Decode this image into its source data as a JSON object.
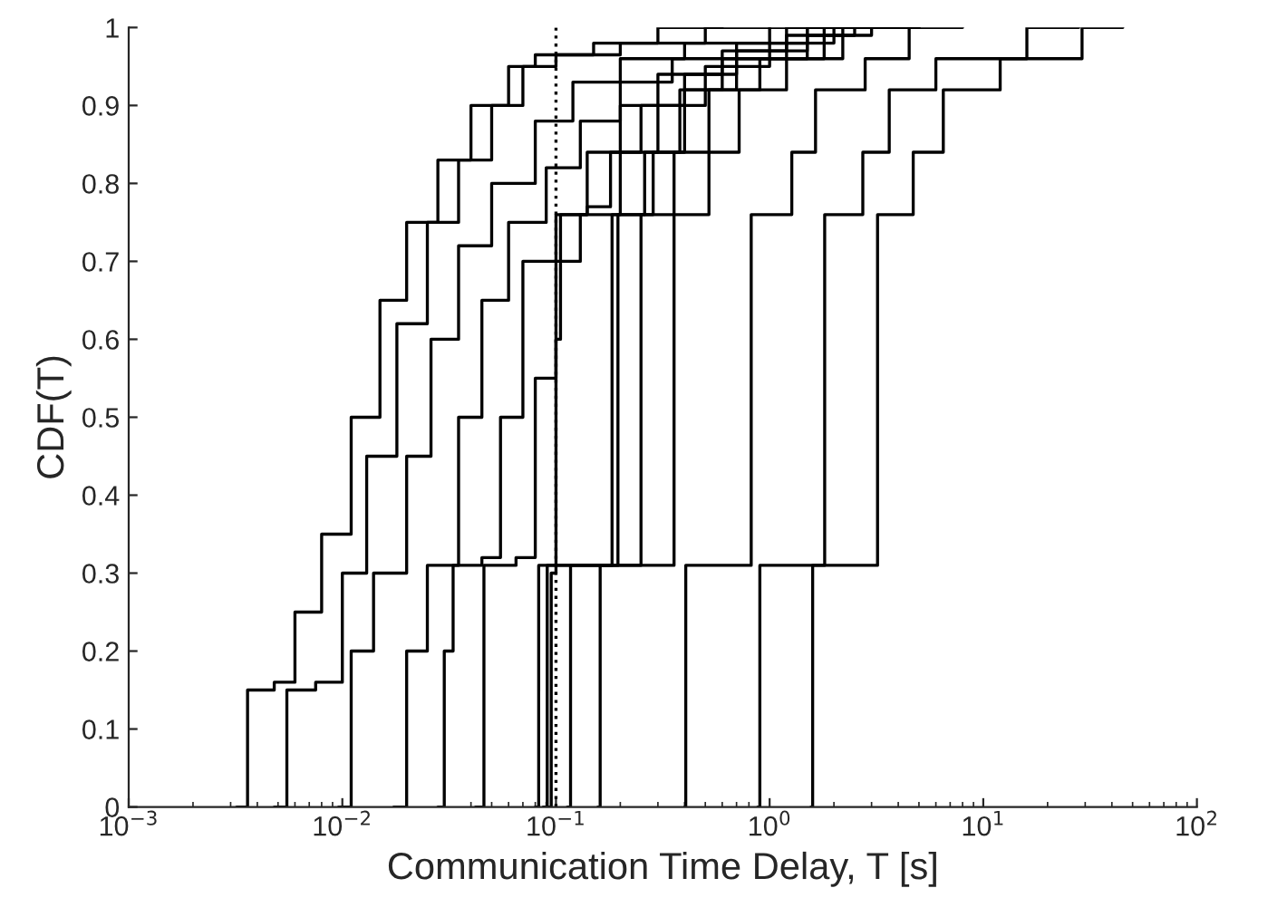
{
  "chart_data": {
    "type": "step",
    "xlabel": "Communication Time Delay, T [s]",
    "ylabel": "CDF(T)",
    "log": "x",
    "grid": false,
    "legend": false,
    "marker": "none",
    "line_style": "solid",
    "xlim": [
      0.001,
      100
    ],
    "ylim": [
      0,
      1
    ],
    "xticks": [
      {
        "value": 0.001,
        "label": "10$^{−3}$"
      },
      {
        "value": 0.01,
        "label": "10$^{−2}$"
      },
      {
        "value": 0.1,
        "label": "10$^{−1}$"
      },
      {
        "value": 1,
        "label": "10$^{0}$"
      },
      {
        "value": 10,
        "label": "10$^{1}$"
      },
      {
        "value": 100,
        "label": "10$^{2}$"
      }
    ],
    "yticks": [
      0,
      0.1,
      0.2,
      0.3,
      0.4,
      0.5,
      0.6,
      0.7,
      0.8,
      0.9,
      1
    ],
    "ref_lines": [
      {
        "axis": "x",
        "value": 0.1,
        "color": "#000000",
        "line_style": "dotted"
      }
    ],
    "series": [
      {
        "color": "#000000",
        "x": [
          0.0032,
          0.0036,
          0.0048,
          0.006,
          0.008,
          0.011,
          0.015,
          0.02,
          0.028,
          0.04,
          0.06,
          0.08,
          0.15,
          0.3,
          0.6
        ],
        "values": [
          0,
          0.15,
          0.16,
          0.25,
          0.35,
          0.5,
          0.65,
          0.75,
          0.83,
          0.9,
          0.95,
          0.965,
          0.98,
          1,
          1
        ]
      },
      {
        "color": "#000000",
        "x": [
          0.0048,
          0.0055,
          0.0075,
          0.01,
          0.013,
          0.018,
          0.025,
          0.035,
          0.05,
          0.07,
          0.1,
          0.2,
          0.5,
          1
        ],
        "values": [
          0,
          0.15,
          0.16,
          0.3,
          0.45,
          0.62,
          0.75,
          0.83,
          0.9,
          0.95,
          0.965,
          0.98,
          1,
          1
        ]
      },
      {
        "color": "#000000",
        "x": [
          0.0096,
          0.011,
          0.014,
          0.02,
          0.026,
          0.035,
          0.05,
          0.08,
          0.12,
          0.2,
          0.4,
          1,
          2
        ],
        "values": [
          0,
          0.2,
          0.3,
          0.45,
          0.6,
          0.72,
          0.8,
          0.88,
          0.93,
          0.96,
          0.98,
          1,
          1
        ]
      },
      {
        "color": "#000000",
        "x": [
          0.0174,
          0.02,
          0.025,
          0.035,
          0.045,
          0.06,
          0.09,
          0.13,
          0.2,
          0.35,
          0.7,
          1.5,
          3
        ],
        "values": [
          0,
          0.2,
          0.31,
          0.5,
          0.65,
          0.75,
          0.82,
          0.88,
          0.93,
          0.96,
          0.98,
          1,
          1
        ]
      },
      {
        "color": "#000000",
        "x": [
          0.028,
          0.03,
          0.033,
          0.045,
          0.055,
          0.07,
          0.1,
          0.14,
          0.2,
          0.3,
          0.6,
          1.5,
          3,
          5
        ],
        "values": [
          0,
          0.2,
          0.31,
          0.32,
          0.5,
          0.7,
          0.76,
          0.84,
          0.9,
          0.94,
          0.97,
          0.99,
          1,
          1
        ]
      },
      {
        "color": "#000000",
        "x": [
          0.042,
          0.046,
          0.065,
          0.08,
          0.1,
          0.13,
          0.2,
          0.3,
          0.5,
          1,
          2,
          4
        ],
        "values": [
          0,
          0.31,
          0.32,
          0.55,
          0.7,
          0.76,
          0.84,
          0.9,
          0.95,
          0.98,
          1,
          1
        ]
      },
      {
        "color": "#000000",
        "x": [
          0.087,
          0.095,
          0.1,
          0.105,
          0.14,
          0.18,
          0.25,
          0.4,
          0.7,
          1.2,
          2.5,
          5
        ],
        "values": [
          0,
          0.3,
          0.6,
          0.76,
          0.77,
          0.84,
          0.9,
          0.94,
          0.97,
          0.99,
          1,
          1
        ]
      },
      {
        "color": "#000000",
        "x": [
          0.08,
          0.083,
          0.183,
          0.26,
          0.38,
          0.6,
          1.2,
          2.5
        ],
        "values": [
          0,
          0.31,
          0.76,
          0.84,
          0.92,
          0.96,
          1,
          1
        ]
      },
      {
        "color": "#000000",
        "x": [
          0.113,
          0.117,
          0.195,
          0.285,
          0.4,
          0.7,
          1.5,
          3
        ],
        "values": [
          0,
          0.31,
          0.76,
          0.84,
          0.92,
          0.96,
          1,
          1
        ]
      },
      {
        "color": "#000000",
        "x": [
          0.157,
          0.161,
          0.25,
          0.357,
          0.52,
          0.9,
          1.8,
          4
        ],
        "values": [
          0,
          0.31,
          0.76,
          0.84,
          0.92,
          0.96,
          1,
          1
        ]
      },
      {
        "color": "#000000",
        "x": [
          0.088,
          0.091,
          0.357,
          0.52,
          0.72,
          1.2,
          2.2,
          5
        ],
        "values": [
          0,
          0.31,
          0.76,
          0.84,
          0.92,
          0.96,
          1,
          1
        ]
      },
      {
        "color": "#000000",
        "x": [
          0.4,
          0.405,
          0.82,
          1.27,
          1.64,
          2.8,
          4.5,
          8
        ],
        "values": [
          0,
          0.31,
          0.76,
          0.84,
          0.92,
          0.96,
          1,
          1
        ]
      },
      {
        "color": "#000000",
        "x": [
          0.88,
          0.9,
          1.81,
          2.73,
          3.63,
          6,
          16,
          28
        ],
        "values": [
          0,
          0.31,
          0.76,
          0.84,
          0.92,
          0.96,
          1,
          1
        ]
      },
      {
        "color": "#000000",
        "x": [
          1.56,
          1.59,
          3.2,
          4.7,
          6.5,
          12,
          29,
          45
        ],
        "values": [
          0,
          0.31,
          0.76,
          0.84,
          0.92,
          0.96,
          1,
          1
        ]
      }
    ]
  }
}
